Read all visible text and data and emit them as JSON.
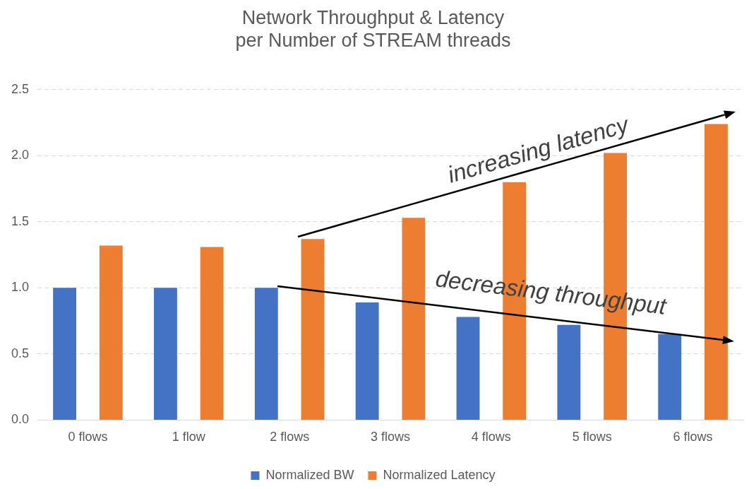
{
  "chart_data": {
    "type": "bar",
    "title": [
      "Network Throughput & Latency",
      "per Number of STREAM threads"
    ],
    "categories": [
      "0 flows",
      "1 flow",
      "2 flows",
      "3 flows",
      "4 flows",
      "5 flows",
      "6 flows"
    ],
    "series": [
      {
        "name": "Normalized BW",
        "color": "#4472c4",
        "values": [
          1.0,
          1.0,
          1.0,
          0.89,
          0.78,
          0.72,
          0.65
        ]
      },
      {
        "name": "Normalized Latency",
        "color": "#ed7d31",
        "values": [
          1.32,
          1.31,
          1.37,
          1.53,
          1.8,
          2.02,
          2.24
        ]
      }
    ],
    "ylim": [
      0,
      2.5
    ],
    "yticks": [
      {
        "value": 0,
        "label": "0.0"
      },
      {
        "value": 0.5,
        "label": "0.5"
      },
      {
        "value": 1,
        "label": "1.0"
      },
      {
        "value": 1.5,
        "label": "1.5"
      },
      {
        "value": 2,
        "label": "2.0"
      },
      {
        "value": 2.5,
        "label": "2.5"
      }
    ],
    "grid": "y",
    "legend": "bottom",
    "annotations": [
      "increasing latency",
      "decreasing throughput"
    ]
  }
}
